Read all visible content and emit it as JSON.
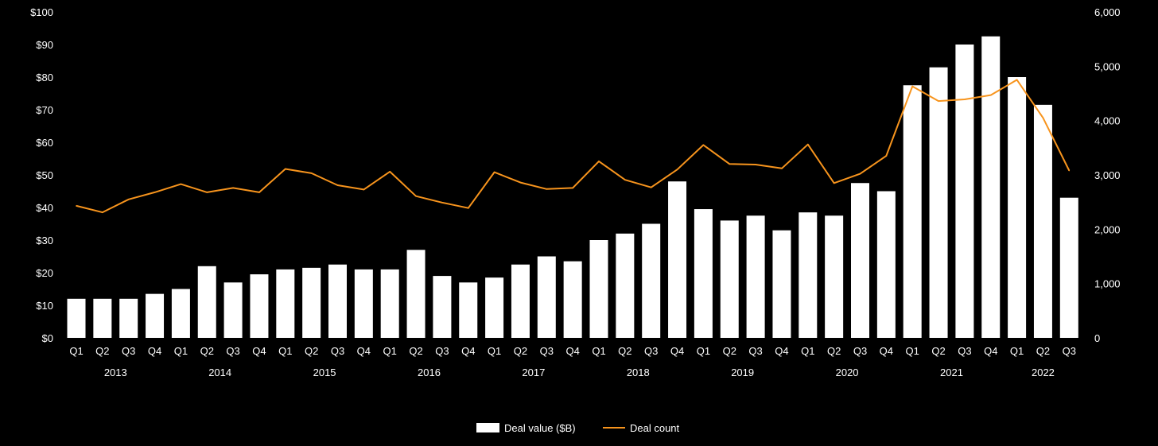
{
  "chart_data": {
    "type": "bar",
    "categories": [
      "Q1",
      "Q2",
      "Q3",
      "Q4",
      "Q1",
      "Q2",
      "Q3",
      "Q4",
      "Q1",
      "Q2",
      "Q3",
      "Q4",
      "Q1",
      "Q2",
      "Q3",
      "Q4",
      "Q1",
      "Q2",
      "Q3",
      "Q4",
      "Q1",
      "Q2",
      "Q3",
      "Q4",
      "Q1",
      "Q2",
      "Q3",
      "Q4",
      "Q1",
      "Q2",
      "Q3",
      "Q4",
      "Q1",
      "Q2",
      "Q3",
      "Q4",
      "Q1",
      "Q2",
      "Q3"
    ],
    "years": [
      {
        "label": "2013",
        "first": 0,
        "last": 3
      },
      {
        "label": "2014",
        "first": 4,
        "last": 7
      },
      {
        "label": "2015",
        "first": 8,
        "last": 11
      },
      {
        "label": "2016",
        "first": 12,
        "last": 15
      },
      {
        "label": "2017",
        "first": 16,
        "last": 19
      },
      {
        "label": "2018",
        "first": 20,
        "last": 23
      },
      {
        "label": "2019",
        "first": 24,
        "last": 27
      },
      {
        "label": "2020",
        "first": 28,
        "last": 31
      },
      {
        "label": "2021",
        "first": 32,
        "last": 35
      },
      {
        "label": "2022",
        "first": 36,
        "last": 38
      }
    ],
    "series": [
      {
        "name": "Deal value ($B)",
        "type": "bar",
        "axis": "left",
        "color": "#ffffff",
        "values": [
          12,
          12,
          12,
          13.5,
          15,
          22,
          17,
          19.5,
          21,
          21.5,
          22.5,
          21,
          21,
          27,
          19,
          17,
          18.5,
          22.5,
          25,
          23.5,
          30,
          32,
          35,
          48,
          39.5,
          36,
          37.5,
          33,
          38.5,
          37.5,
          47.5,
          45,
          77.5,
          83,
          90,
          92.5,
          80,
          71.5,
          43
        ]
      },
      {
        "name": "Deal count",
        "type": "line",
        "axis": "right",
        "color": "#f7941d",
        "values": [
          2430,
          2310,
          2550,
          2680,
          2830,
          2680,
          2760,
          2680,
          3110,
          3030,
          2810,
          2730,
          3060,
          2610,
          2490,
          2390,
          3050,
          2860,
          2740,
          2760,
          3250,
          2910,
          2770,
          3100,
          3550,
          3200,
          3190,
          3120,
          3560,
          2850,
          3020,
          3350,
          4630,
          4360,
          4390,
          4470,
          4750,
          4050,
          3080
        ]
      }
    ],
    "y_left": {
      "min": 0,
      "max": 100,
      "ticks": [
        0,
        10,
        20,
        30,
        40,
        50,
        60,
        70,
        80,
        90,
        100
      ],
      "tick_labels": [
        "$0",
        "$10",
        "$20",
        "$30",
        "$40",
        "$50",
        "$60",
        "$70",
        "$80",
        "$90",
        "$100"
      ]
    },
    "y_right": {
      "min": 0,
      "max": 6000,
      "ticks": [
        0,
        1000,
        2000,
        3000,
        4000,
        5000,
        6000
      ],
      "tick_labels": [
        "0",
        "1,000",
        "2,000",
        "3,000",
        "4,000",
        "5,000",
        "6,000"
      ]
    },
    "grid": false,
    "legend": {
      "position": "bottom-center",
      "items": [
        {
          "label": "Deal value ($B)",
          "kind": "bar",
          "color": "#ffffff"
        },
        {
          "label": "Deal count",
          "kind": "line",
          "color": "#f7941d"
        }
      ]
    },
    "colors": {
      "background": "#000000",
      "text": "#ffffff",
      "bars": "#ffffff",
      "line": "#f7941d"
    }
  }
}
